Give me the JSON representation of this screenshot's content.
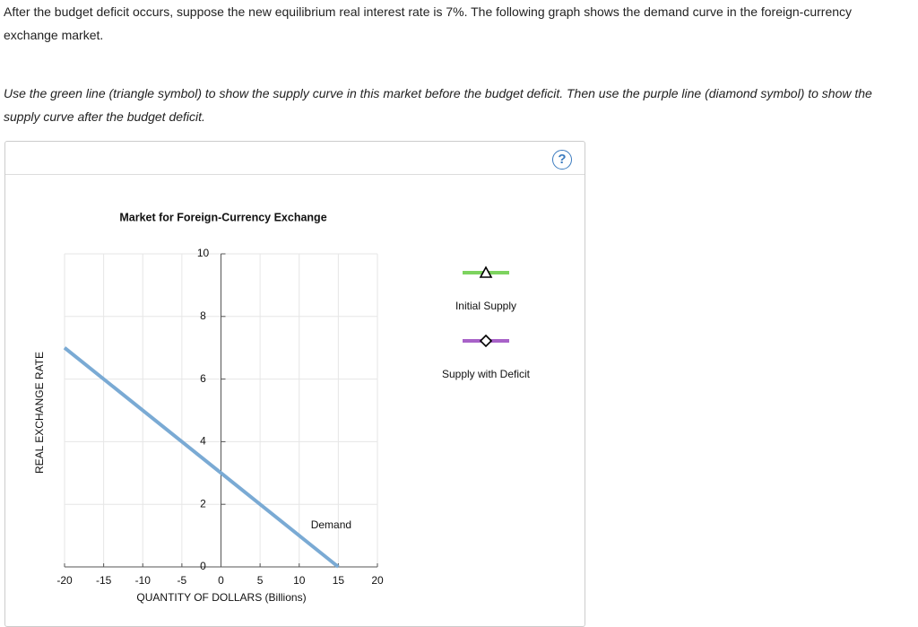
{
  "intro": "After the budget deficit occurs, suppose the new equilibrium real interest rate is 7%. The following graph shows the demand curve in the foreign-currency exchange market.",
  "instructions": "Use the green line (triangle symbol) to show the supply curve in this market before the budget deficit. Then use the purple line (diamond symbol) to show the supply curve after the budget deficit.",
  "help_icon": "?",
  "tools": [
    {
      "label": "Initial Supply",
      "color": "#7dd35f"
    },
    {
      "label": "Supply with Deficit",
      "color": "#a862c8"
    }
  ],
  "chart_data": {
    "type": "line",
    "title": "Market for Foreign-Currency Exchange",
    "x_label": "QUANTITY OF DOLLARS (Billions)",
    "y_label": "REAL EXCHANGE RATE",
    "xlim": [
      -20,
      20
    ],
    "ylim": [
      0,
      10
    ],
    "xticks": [
      -20,
      -15,
      -10,
      -5,
      0,
      5,
      10,
      15,
      20
    ],
    "yticks": [
      0,
      2,
      4,
      6,
      8,
      10
    ],
    "grid": true,
    "series": [
      {
        "name": "Demand",
        "color": "#7aaad4",
        "x": [
          -20,
          15
        ],
        "values": [
          7,
          0
        ]
      }
    ]
  }
}
